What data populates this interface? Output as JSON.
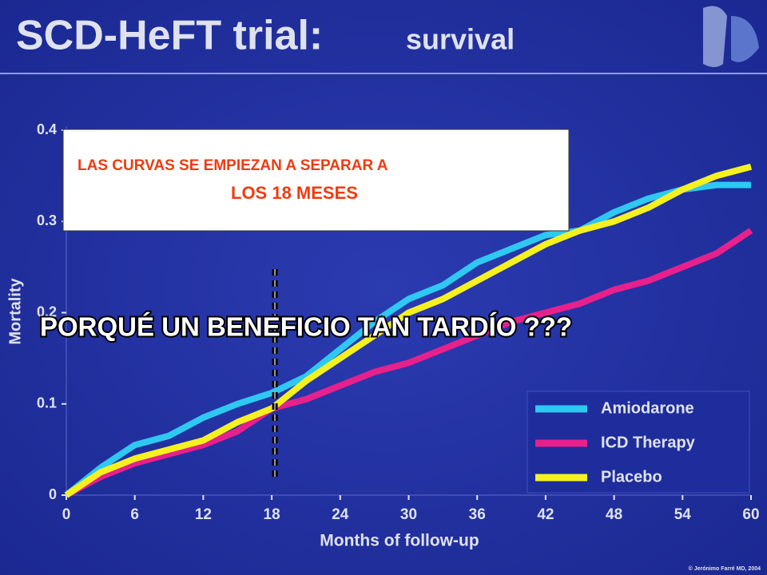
{
  "chart_data": {
    "type": "line",
    "title": "SCD-HeFT trial:",
    "subtitle": "survival",
    "xlabel": "Months of follow-up",
    "ylabel": "Mortality",
    "x": [
      0,
      3,
      6,
      9,
      12,
      15,
      18,
      21,
      24,
      27,
      30,
      33,
      36,
      39,
      42,
      45,
      48,
      51,
      54,
      57,
      60
    ],
    "series": [
      {
        "name": "Amiodarone",
        "color": "#2ec8f0",
        "values": [
          0,
          0.03,
          0.055,
          0.065,
          0.085,
          0.1,
          0.112,
          0.13,
          0.16,
          0.19,
          0.215,
          0.23,
          0.255,
          0.27,
          0.285,
          0.29,
          0.31,
          0.325,
          0.335,
          0.34,
          0.34
        ]
      },
      {
        "name": "ICD Therapy",
        "color": "#e8208c",
        "values": [
          0,
          0.02,
          0.035,
          0.045,
          0.055,
          0.07,
          0.095,
          0.105,
          0.12,
          0.135,
          0.145,
          0.16,
          0.175,
          0.19,
          0.2,
          0.21,
          0.225,
          0.235,
          0.25,
          0.265,
          0.29
        ]
      },
      {
        "name": "Placebo",
        "color": "#f5f020",
        "values": [
          0,
          0.025,
          0.04,
          0.05,
          0.06,
          0.08,
          0.095,
          0.125,
          0.15,
          0.175,
          0.2,
          0.215,
          0.235,
          0.255,
          0.275,
          0.29,
          0.3,
          0.315,
          0.335,
          0.35,
          0.36
        ]
      }
    ],
    "xlim": [
      0,
      60
    ],
    "xticks": [
      0,
      6,
      12,
      18,
      24,
      30,
      36,
      42,
      48,
      54,
      60
    ],
    "ylim": [
      0,
      0.4
    ],
    "yticks": [
      0,
      0.1,
      0.2,
      0.3,
      0.4
    ],
    "legend": "lower right",
    "marker_x": 18,
    "annotations": [
      "LAS CURVAS SE EMPIEZAN A SEPARAR A",
      "LOS 18 MESES",
      "PORQUÉ UN BENEFICIO TAN TARDÍO ???"
    ],
    "credit": "© Jerónimo Farré MD, 2004"
  }
}
